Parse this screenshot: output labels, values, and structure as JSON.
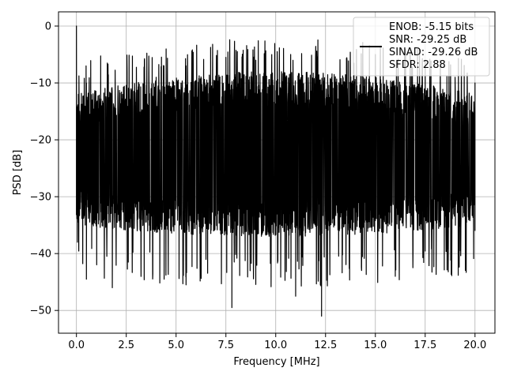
{
  "chart_data": {
    "type": "line",
    "title": "",
    "xlabel": "Frequency [MHz]",
    "ylabel": "PSD [dB]",
    "xlim": [
      -0.9,
      21.0
    ],
    "ylim": [
      -54.0,
      2.5
    ],
    "xticks": [
      0.0,
      2.5,
      5.0,
      7.5,
      10.0,
      12.5,
      15.0,
      17.5,
      20.0
    ],
    "xtick_labels": [
      "0.0",
      "2.5",
      "5.0",
      "7.5",
      "10.0",
      "12.5",
      "15.0",
      "17.5",
      "20.0"
    ],
    "yticks": [
      0,
      -10,
      -20,
      -30,
      -40,
      -50
    ],
    "ytick_labels": [
      "0",
      "−10",
      "−20",
      "−30",
      "−40",
      "−50"
    ],
    "grid": true,
    "series_color": "#000000",
    "legend": {
      "placement": "upper-right",
      "lines": [
        "ENOB: -5.15 bits",
        "SNR: -29.25 dB",
        "SINAD: -29.26 dB",
        "SFDR: 2.88"
      ]
    },
    "series": [
      {
        "x_range": [
          0.0,
          20.0
        ],
        "spectrum_trace": [
          {
            "x": 0.0,
            "y": 0.0
          },
          {
            "x": 0.05,
            "y": -38.0
          },
          {
            "x": 0.1,
            "y": -12.0
          },
          {
            "x": 0.5,
            "y": -10.0
          },
          {
            "x": 0.5,
            "y": -44.5
          },
          {
            "x": 1.8,
            "y": -46.0
          },
          {
            "x": 2.6,
            "y": -41.5
          },
          {
            "x": 4.0,
            "y": -9.0
          },
          {
            "x": 4.4,
            "y": -44.5
          },
          {
            "x": 5.5,
            "y": -7.0
          },
          {
            "x": 5.5,
            "y": -45.5
          },
          {
            "x": 7.5,
            "y": -5.5
          },
          {
            "x": 7.8,
            "y": -49.5
          },
          {
            "x": 9.0,
            "y": -6.0
          },
          {
            "x": 11.0,
            "y": -47.5
          },
          {
            "x": 12.0,
            "y": -5.5
          },
          {
            "x": 12.3,
            "y": -51.0
          },
          {
            "x": 15.0,
            "y": -5.0
          },
          {
            "x": 16.0,
            "y": -44.0
          },
          {
            "x": 17.5,
            "y": -6.0
          },
          {
            "x": 19.0,
            "y": -9.0
          },
          {
            "x": 20.0,
            "y": -10.0
          },
          {
            "x": 20.0,
            "y": -36.0
          }
        ],
        "floor_top": -12.0,
        "floor_bottom": -35.0
      }
    ]
  }
}
